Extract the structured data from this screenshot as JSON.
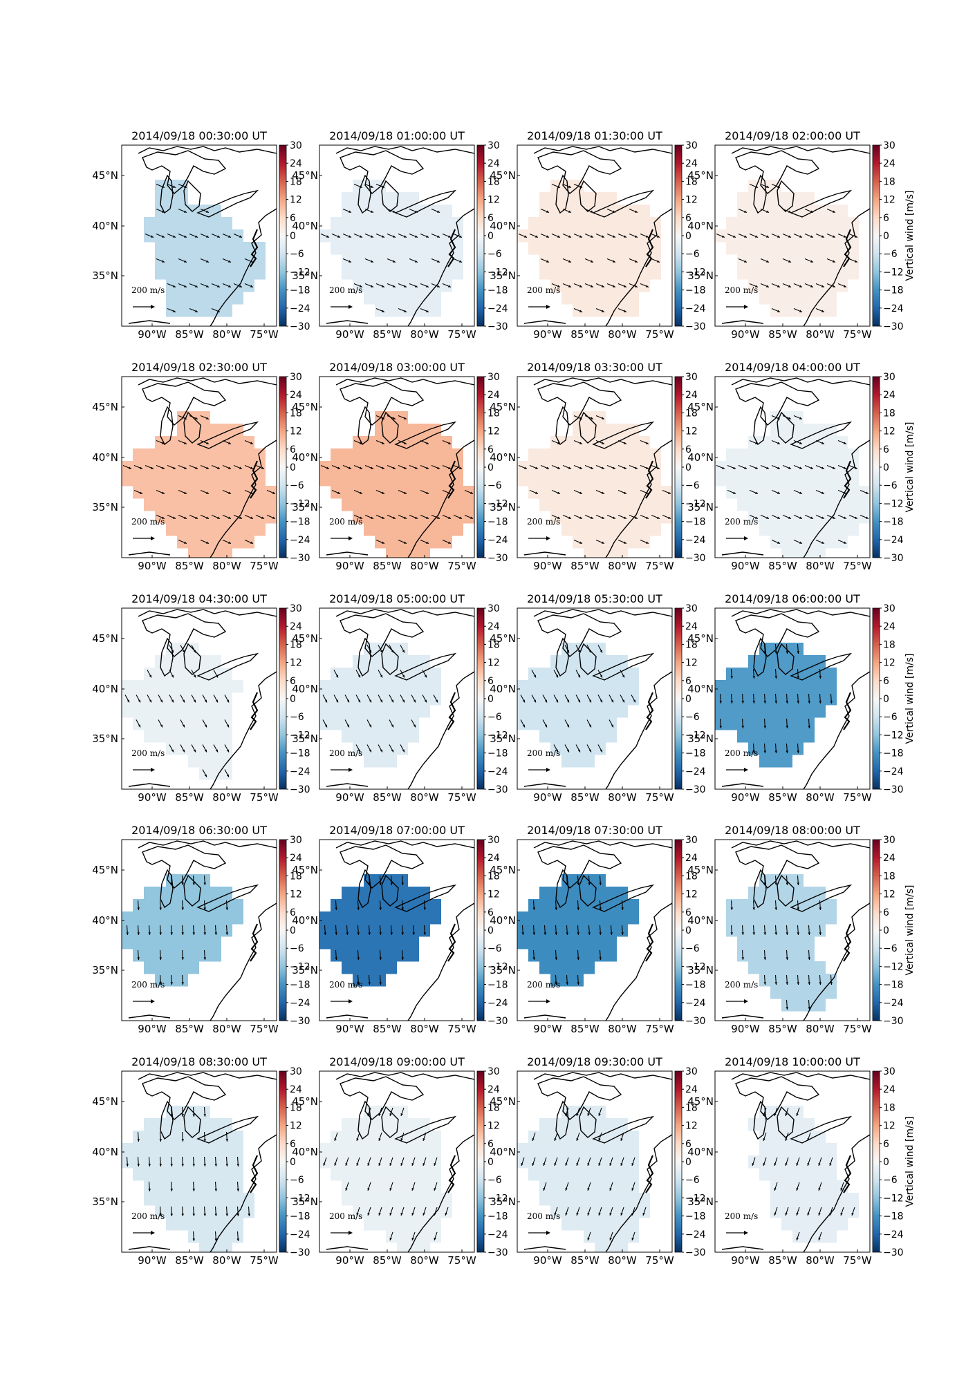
{
  "figure": {
    "colorbar": {
      "label": "Vertical wind [m/s]",
      "ticks": [
        "30",
        "24",
        "18",
        "12",
        "6",
        "0",
        "−6",
        "−12",
        "−18",
        "−24",
        "−30"
      ],
      "range": [
        -30,
        30
      ],
      "colormap": "RdBu_r",
      "stops": [
        "#67001f",
        "#b2182b",
        "#d6604d",
        "#f4a582",
        "#fddbc7",
        "#f7f7f7",
        "#d1e5f0",
        "#92c5de",
        "#4393c3",
        "#2166ac",
        "#053061"
      ]
    },
    "axes": {
      "lon_ticks": [
        "90°W",
        "85°W",
        "80°W",
        "75°W"
      ],
      "lat_ticks": [
        "45°N",
        "40°N",
        "35°N"
      ]
    },
    "scale_label": "200 m/s",
    "panels": [
      {
        "title": "2014/09/18 00:30:00 UT",
        "wind_value": -8,
        "region": "a",
        "arrow": "se"
      },
      {
        "title": "2014/09/18 01:00:00 UT",
        "wind_value": -3,
        "region": "b",
        "arrow": "se"
      },
      {
        "title": "2014/09/18 01:30:00 UT",
        "wind_value": 3,
        "region": "b",
        "arrow": "se"
      },
      {
        "title": "2014/09/18 02:00:00 UT",
        "wind_value": 2,
        "region": "b",
        "arrow": "se"
      },
      {
        "title": "2014/09/18 02:30:00 UT",
        "wind_value": 9,
        "region": "c",
        "arrow": "se"
      },
      {
        "title": "2014/09/18 03:00:00 UT",
        "wind_value": 10,
        "region": "c",
        "arrow": "se"
      },
      {
        "title": "2014/09/18 03:30:00 UT",
        "wind_value": 3,
        "region": "c",
        "arrow": "se"
      },
      {
        "title": "2014/09/18 04:00:00 UT",
        "wind_value": -2,
        "region": "c",
        "arrow": "se"
      },
      {
        "title": "2014/09/18 04:30:00 UT",
        "wind_value": -2,
        "region": "d",
        "arrow": "sse"
      },
      {
        "title": "2014/09/18 05:00:00 UT",
        "wind_value": -4,
        "region": "e",
        "arrow": "sse"
      },
      {
        "title": "2014/09/18 05:30:00 UT",
        "wind_value": -6,
        "region": "e",
        "arrow": "sse"
      },
      {
        "title": "2014/09/18 06:00:00 UT",
        "wind_value": -17,
        "region": "e",
        "arrow": "s"
      },
      {
        "title": "2014/09/18 06:30:00 UT",
        "wind_value": -12,
        "region": "f",
        "arrow": "s"
      },
      {
        "title": "2014/09/18 07:00:00 UT",
        "wind_value": -22,
        "region": "f",
        "arrow": "s"
      },
      {
        "title": "2014/09/18 07:30:00 UT",
        "wind_value": -19,
        "region": "f",
        "arrow": "s"
      },
      {
        "title": "2014/09/18 08:00:00 UT",
        "wind_value": -9,
        "region": "g",
        "arrow": "s"
      },
      {
        "title": "2014/09/18 08:30:00 UT",
        "wind_value": -5,
        "region": "h",
        "arrow": "s"
      },
      {
        "title": "2014/09/18 09:00:00 UT",
        "wind_value": -2,
        "region": "h",
        "arrow": "ssw"
      },
      {
        "title": "2014/09/18 09:30:00 UT",
        "wind_value": -4,
        "region": "h",
        "arrow": "ssw"
      },
      {
        "title": "2014/09/18 10:00:00 UT",
        "wind_value": -3,
        "region": "i",
        "arrow": "ssw"
      }
    ]
  }
}
